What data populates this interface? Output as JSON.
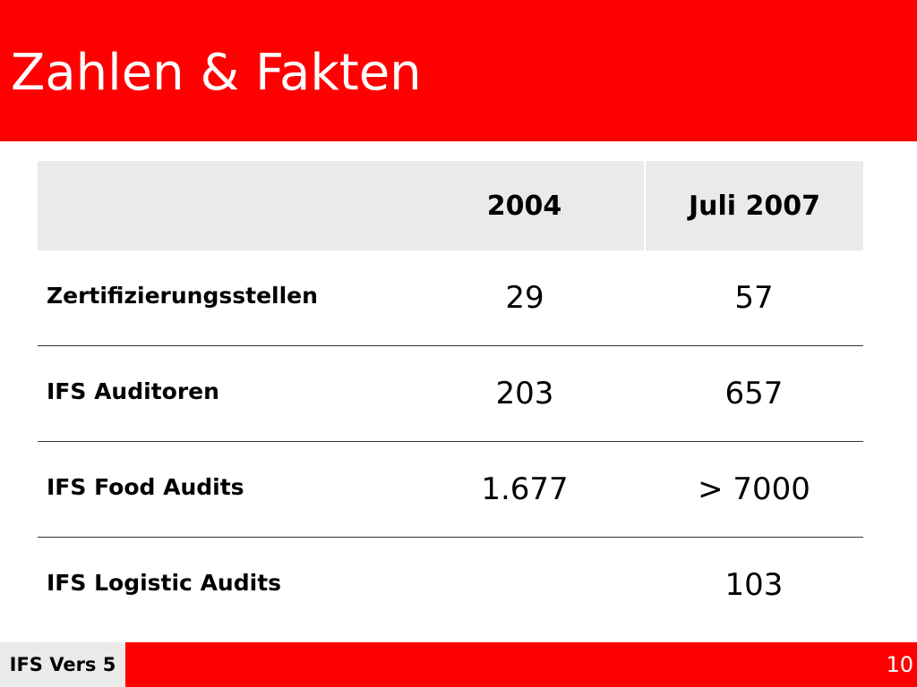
{
  "slide": {
    "title": "Zahlen & Fakten",
    "colors": {
      "accent": "#ff0000",
      "header_fill": "#eaeaea",
      "title_text": "#ffffff"
    }
  },
  "table": {
    "headers": [
      "",
      "2004",
      "Juli 2007"
    ],
    "rows": [
      {
        "label": "Zertifizierungsstellen",
        "y2004": "29",
        "y2007": "57"
      },
      {
        "label": "IFS Auditoren",
        "y2004": "203",
        "y2007": "657"
      },
      {
        "label": "IFS Food Audits",
        "y2004": "1.677",
        "y2007": "> 7000"
      },
      {
        "label": "IFS Logistic Audits",
        "y2004": "",
        "y2007": "103"
      }
    ]
  },
  "footer": {
    "label": "IFS Vers 5",
    "page_number": "10"
  }
}
